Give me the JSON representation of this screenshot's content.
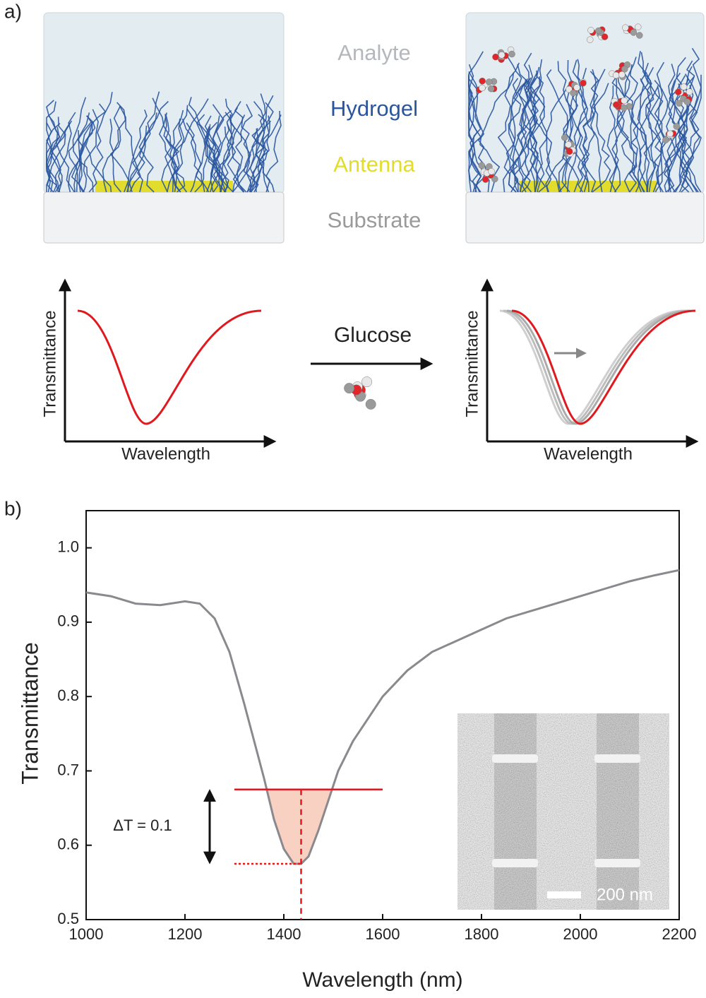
{
  "panel_a": {
    "label": "a)",
    "layers": [
      {
        "text": "Analyte",
        "color": "#b4b8bc"
      },
      {
        "text": "Hydrogel",
        "color": "#2a56a0"
      },
      {
        "text": "Antenna",
        "color": "#e2dd2c"
      },
      {
        "text": "Substrate",
        "color": "#9a9a9a"
      }
    ],
    "stimulus": "Glucose",
    "left_plot": {
      "ylabel": "Transmittance",
      "xlabel": "Wavelength"
    },
    "right_plot": {
      "ylabel": "Transmittance",
      "xlabel": "Wavelength"
    }
  },
  "panel_b": {
    "label": "b)"
  },
  "chart_data": {
    "type": "line",
    "xlabel": "Wavelength (nm)",
    "ylabel": "Transmittance",
    "x": [
      1000,
      1050,
      1100,
      1150,
      1200,
      1230,
      1260,
      1290,
      1320,
      1340,
      1360,
      1380,
      1400,
      1420,
      1435,
      1450,
      1470,
      1490,
      1510,
      1540,
      1570,
      1600,
      1650,
      1700,
      1750,
      1800,
      1850,
      1900,
      1950,
      2000,
      2050,
      2100,
      2150,
      2200
    ],
    "values": [
      0.94,
      0.935,
      0.925,
      0.923,
      0.928,
      0.925,
      0.905,
      0.86,
      0.79,
      0.74,
      0.69,
      0.635,
      0.595,
      0.575,
      0.575,
      0.585,
      0.62,
      0.66,
      0.7,
      0.74,
      0.77,
      0.8,
      0.835,
      0.86,
      0.875,
      0.89,
      0.905,
      0.915,
      0.925,
      0.935,
      0.945,
      0.955,
      0.963,
      0.97
    ],
    "color": "#8a8a8e",
    "xlim": [
      1000,
      2200
    ],
    "xticks": [
      1000,
      1200,
      1400,
      1600,
      1800,
      2000,
      2200
    ],
    "ylim": [
      0.5,
      1.05
    ],
    "yticks": [
      0.5,
      0.6,
      0.7,
      0.8,
      0.9,
      {
        "value": 1,
        "label": "1.0"
      }
    ],
    "annotations": {
      "threshold": 0.675,
      "minimum": 0.575,
      "min_wavelength": 1435,
      "x_range": [
        1300,
        1600
      ],
      "arrow_x": 1250,
      "label": "ΔT = 0.1",
      "color": "#e0191f",
      "fill": "#f8c9b8"
    },
    "inset_label": "200 nm"
  }
}
